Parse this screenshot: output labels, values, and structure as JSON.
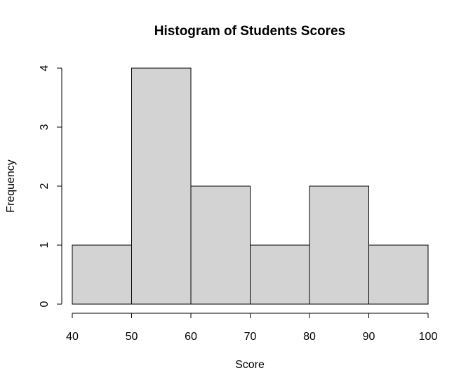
{
  "chart_data": {
    "type": "bar",
    "title": "Histogram of Students Scores",
    "xlabel": "Score",
    "ylabel": "Frequency",
    "bins": [
      {
        "from": 40,
        "to": 50,
        "count": 1
      },
      {
        "from": 50,
        "to": 60,
        "count": 4
      },
      {
        "from": 60,
        "to": 70,
        "count": 2
      },
      {
        "from": 70,
        "to": 80,
        "count": 1
      },
      {
        "from": 80,
        "to": 90,
        "count": 2
      },
      {
        "from": 90,
        "to": 100,
        "count": 1
      }
    ],
    "xlim": [
      40,
      100
    ],
    "ylim": [
      0,
      4
    ],
    "x_ticks": [
      "40",
      "50",
      "60",
      "70",
      "80",
      "90",
      "100"
    ],
    "y_ticks": [
      "0",
      "1",
      "2",
      "3",
      "4"
    ],
    "grid": false,
    "bar_color": "#d3d3d3"
  }
}
